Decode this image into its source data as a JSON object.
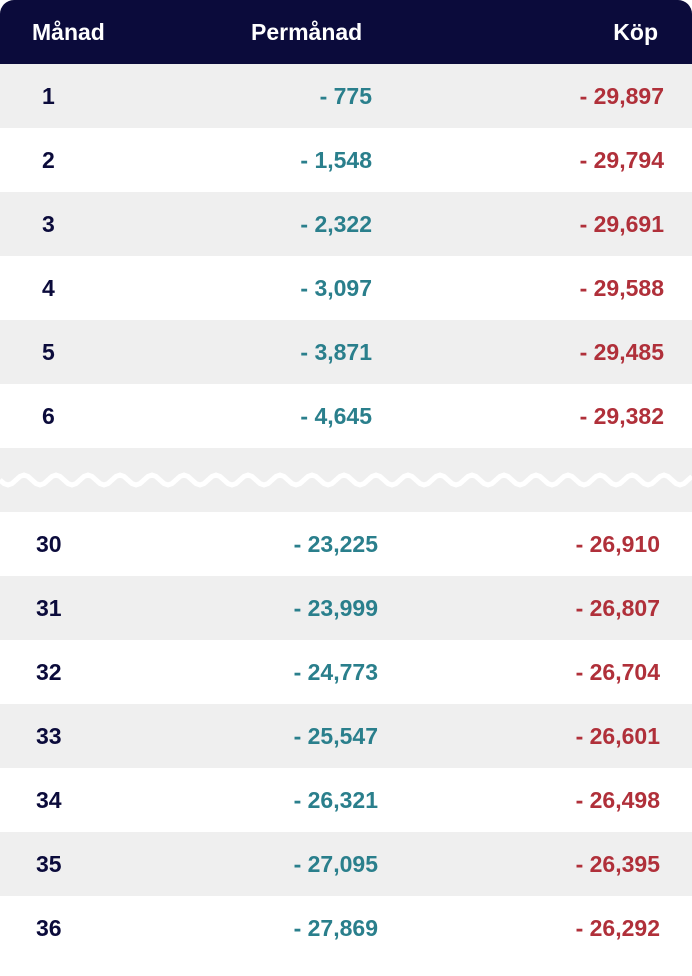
{
  "header": {
    "col1": "Månad",
    "col2": "Permånad",
    "col3": "Köp"
  },
  "rows_top": [
    {
      "month": "1",
      "perm": "- 775",
      "kop": "- 29,897"
    },
    {
      "month": "2",
      "perm": "- 1,548",
      "kop": "- 29,794"
    },
    {
      "month": "3",
      "perm": "- 2,322",
      "kop": "- 29,691"
    },
    {
      "month": "4",
      "perm": "- 3,097",
      "kop": "- 29,588"
    },
    {
      "month": "5",
      "perm": "- 3,871",
      "kop": "- 29,485"
    },
    {
      "month": "6",
      "perm": "- 4,645",
      "kop": "- 29,382"
    }
  ],
  "rows_bottom": [
    {
      "month": "30",
      "perm": "- 23,225",
      "kop": "- 26,910"
    },
    {
      "month": "31",
      "perm": "- 23,999",
      "kop": "- 26,807"
    },
    {
      "month": "32",
      "perm": "- 24,773",
      "kop": "- 26,704"
    },
    {
      "month": "33",
      "perm": "- 25,547",
      "kop": "- 26,601"
    },
    {
      "month": "34",
      "perm": "- 26,321",
      "kop": "- 26,498"
    },
    {
      "month": "35",
      "perm": "- 27,095",
      "kop": "- 26,395"
    },
    {
      "month": "36",
      "perm": "- 27,869",
      "kop": "- 26,292"
    }
  ],
  "colors": {
    "header_bg": "#0b0b3b",
    "month_text": "#0b0b3b",
    "perm_text": "#2a7f8c",
    "kop_text": "#b0303a",
    "stripe": "#efefef"
  },
  "icons": {
    "break": "wavy-break-icon"
  }
}
